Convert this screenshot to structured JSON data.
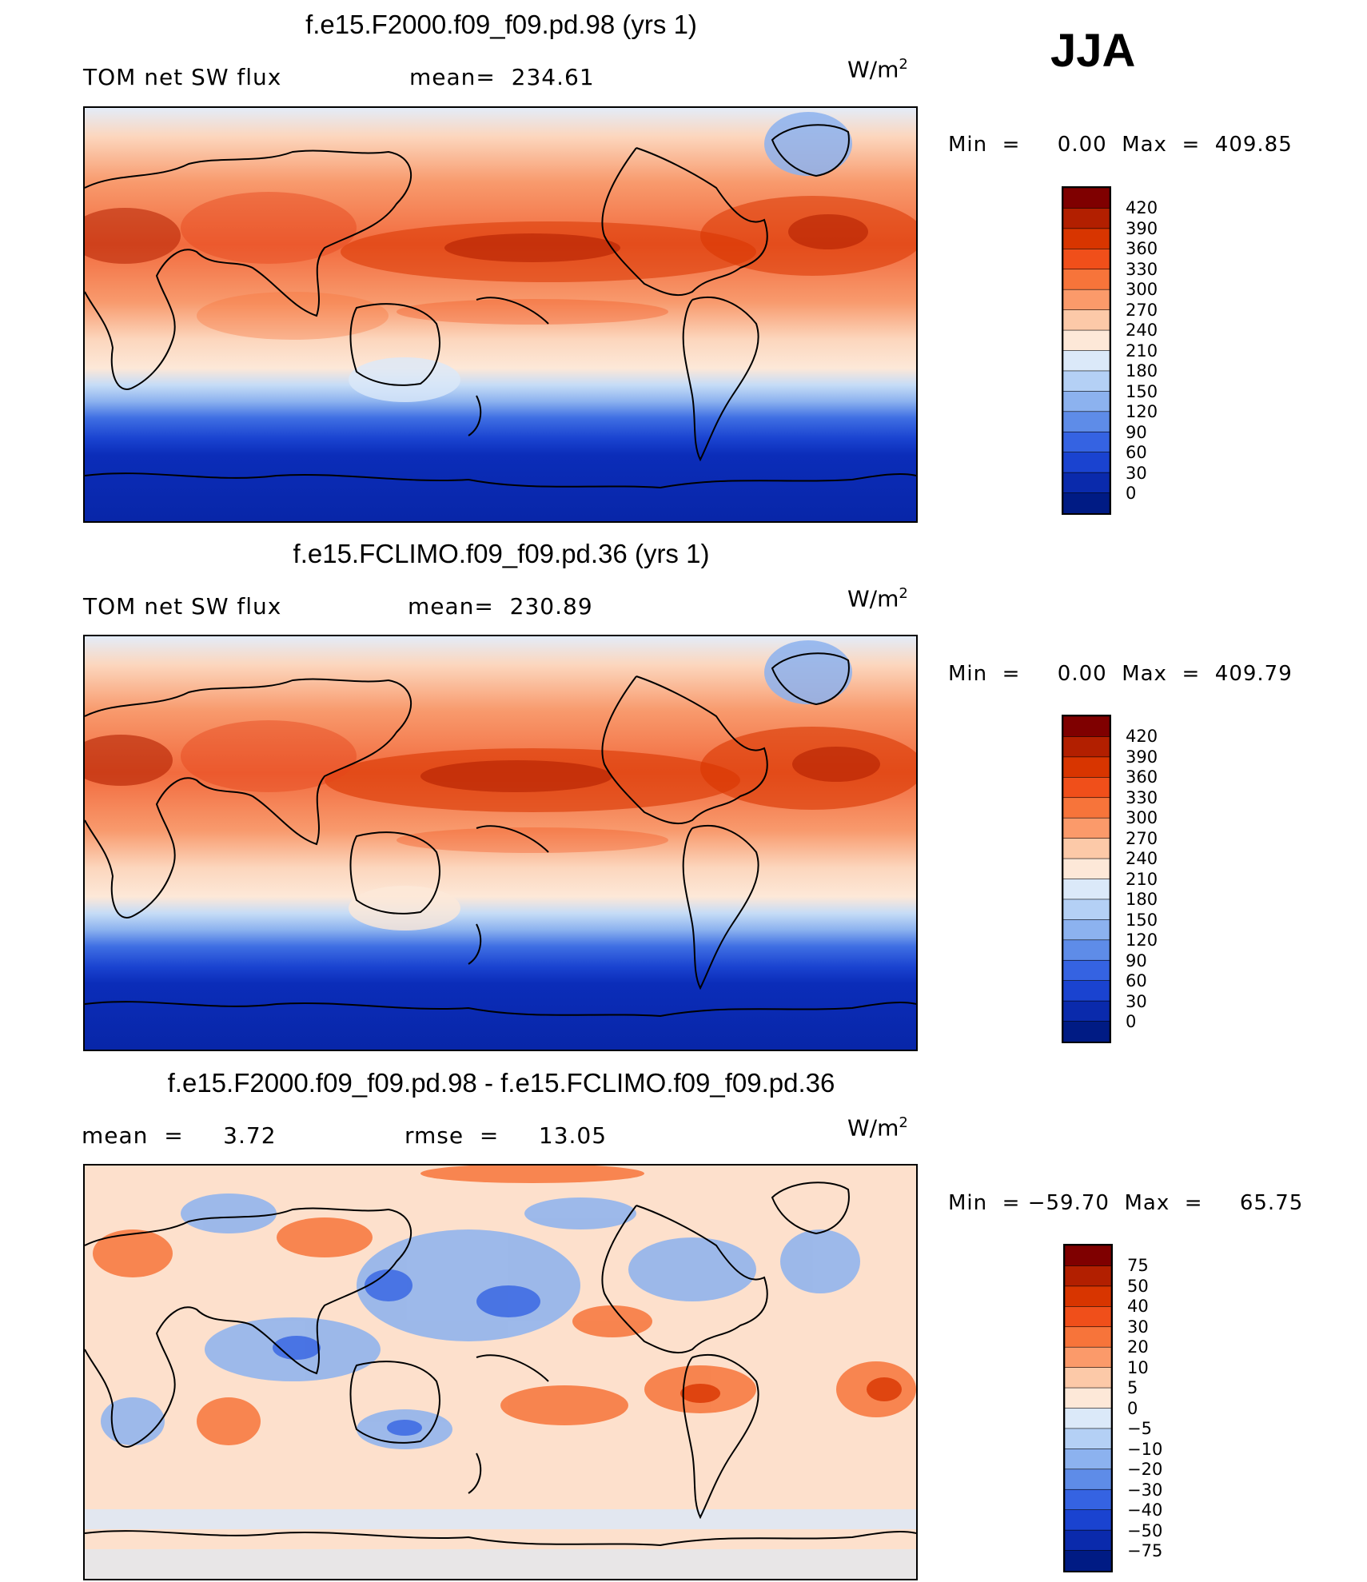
{
  "season": "JJA",
  "unit_base": "W/m",
  "unit_exp": "2",
  "chart_data": [
    {
      "type": "heatmap",
      "title": "f.e15.F2000.f09_f09.pd.98 (yrs 1)",
      "variable": "TOM net SW flux",
      "stat": "mean=  234.61",
      "min_max": "Min  =     0.00  Max  =  409.85",
      "levels": [
        "420",
        "390",
        "360",
        "330",
        "300",
        "270",
        "240",
        "210",
        "180",
        "150",
        "120",
        "90",
        "60",
        "30",
        "0"
      ],
      "colors": [
        "#7f0000",
        "#b21f00",
        "#d83500",
        "#f04f1a",
        "#f7743a",
        "#fb9a6a",
        "#fcc9a8",
        "#fde8d8",
        "#dbe9f9",
        "#b4d0f5",
        "#8cb2ef",
        "#5e8ce8",
        "#3563e2",
        "#1a43d0",
        "#0a2aac",
        "#001b84"
      ]
    },
    {
      "type": "heatmap",
      "title": "f.e15.FCLIMO.f09_f09.pd.36 (yrs 1)",
      "variable": "TOM net SW flux",
      "stat": "mean=  230.89",
      "min_max": "Min  =     0.00  Max  =  409.79",
      "levels": [
        "420",
        "390",
        "360",
        "330",
        "300",
        "270",
        "240",
        "210",
        "180",
        "150",
        "120",
        "90",
        "60",
        "30",
        "0"
      ],
      "colors": [
        "#7f0000",
        "#b21f00",
        "#d83500",
        "#f04f1a",
        "#f7743a",
        "#fb9a6a",
        "#fcc9a8",
        "#fde8d8",
        "#dbe9f9",
        "#b4d0f5",
        "#8cb2ef",
        "#5e8ce8",
        "#3563e2",
        "#1a43d0",
        "#0a2aac",
        "#001b84"
      ]
    },
    {
      "type": "heatmap",
      "title": "f.e15.F2000.f09_f09.pd.98 - f.e15.FCLIMO.f09_f09.pd.36",
      "mean_label": "mean  =     3.72",
      "rmse_label": "rmse  =     13.05",
      "min_max": "Min  = −59.70  Max  =     65.75",
      "levels": [
        "75",
        "50",
        "40",
        "30",
        "20",
        "10",
        "5",
        "0",
        "−5",
        "−10",
        "−20",
        "−30",
        "−40",
        "−50",
        "−75"
      ],
      "colors": [
        "#7f0000",
        "#b21f00",
        "#d83500",
        "#f04f1a",
        "#f7743a",
        "#fb9a6a",
        "#fcc9a8",
        "#fde8d8",
        "#dbe9f9",
        "#b4d0f5",
        "#8cb2ef",
        "#5e8ce8",
        "#3563e2",
        "#1a43d0",
        "#0a2aac",
        "#001b84"
      ]
    }
  ]
}
